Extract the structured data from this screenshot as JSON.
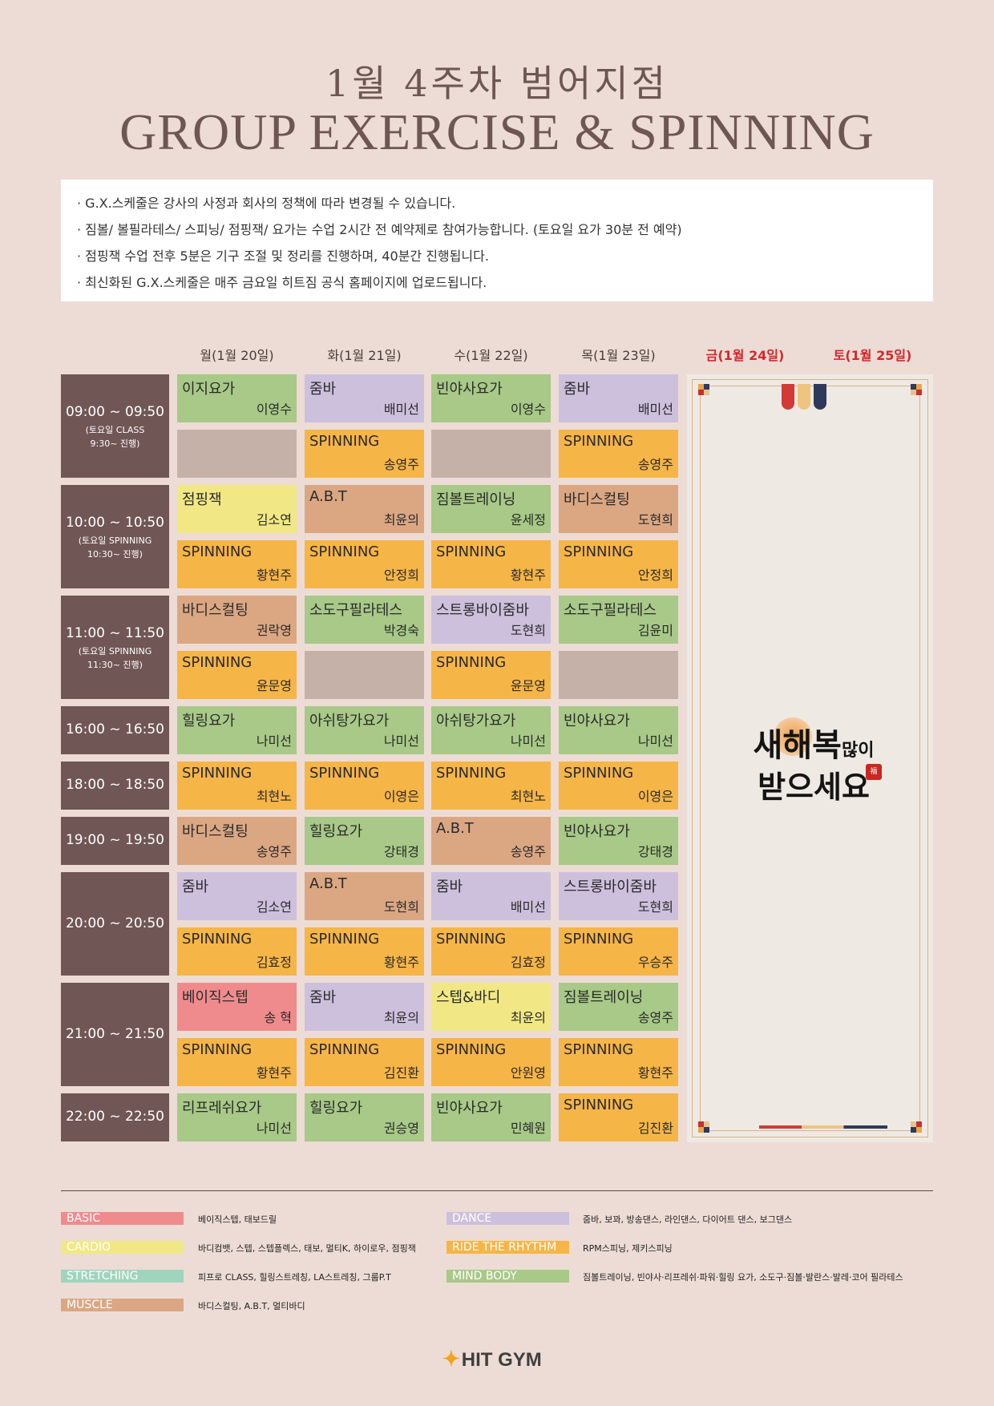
{
  "title_line1": "1월 4주차 범어지점",
  "title_line2": "GROUP EXERCISE & SPINNING",
  "notices": [
    "· G.X.스케줄은 강사의 사정과 회사의 정책에 따라 변경될 수 있습니다.",
    "· 짐볼/ 볼필라테스/ 스피닝/ 점핑잭/ 요가는 수업 2시간 전 예약제로 참여가능합니다. (토요일 요가 30분 전 예약)",
    "· 점핑잭 수업 전후 5분은 기구 조절 및 정리를 진행하며, 40분간 진행됩니다.",
    "· 최신화된 G.X.스케줄은 매주 금요일 히트짐 공식 홈페이지에 업로드됩니다."
  ],
  "days": [
    "월(1월 20일)",
    "화(1월 21일)",
    "수(1월 22일)",
    "목(1월 23일)",
    "금(1월 24일)",
    "토(1월 25일)"
  ],
  "slots": [
    {
      "time": "09:00 ~ 09:50",
      "note1": "(토요일 CLASS",
      "note2": "9:30~ 진행)",
      "rows": [
        [
          {
            "name": "이지요가",
            "inst": "이영수",
            "color": "green"
          },
          {
            "name": "줌바",
            "inst": "배미선",
            "color": "purple"
          },
          {
            "name": "빈야사요가",
            "inst": "이영수",
            "color": "green"
          },
          {
            "name": "줌바",
            "inst": "배미선",
            "color": "purple"
          }
        ],
        [
          {
            "name": "",
            "inst": "",
            "color": "empty"
          },
          {
            "name": "SPINNING",
            "inst": "송영주",
            "color": "orange"
          },
          {
            "name": "",
            "inst": "",
            "color": "empty"
          },
          {
            "name": "SPINNING",
            "inst": "송영주",
            "color": "orange"
          }
        ]
      ]
    },
    {
      "time": "10:00 ~ 10:50",
      "note1": "(토요일 SPINNING",
      "note2": "10:30~ 진행)",
      "rows": [
        [
          {
            "name": "점핑잭",
            "inst": "김소연",
            "color": "yellow"
          },
          {
            "name": "A.B.T",
            "inst": "최윤의",
            "color": "tan"
          },
          {
            "name": "짐볼트레이닝",
            "inst": "윤세정",
            "color": "green"
          },
          {
            "name": "바디스컬팅",
            "inst": "도현희",
            "color": "tan"
          }
        ],
        [
          {
            "name": "SPINNING",
            "inst": "황현주",
            "color": "orange"
          },
          {
            "name": "SPINNING",
            "inst": "안정희",
            "color": "orange"
          },
          {
            "name": "SPINNING",
            "inst": "황현주",
            "color": "orange"
          },
          {
            "name": "SPINNING",
            "inst": "안정희",
            "color": "orange"
          }
        ]
      ]
    },
    {
      "time": "11:00 ~ 11:50",
      "note1": "(토요일 SPINNING",
      "note2": "11:30~ 진행)",
      "rows": [
        [
          {
            "name": "바디스컬팅",
            "inst": "권락영",
            "color": "tan"
          },
          {
            "name": "소도구필라테스",
            "inst": "박경숙",
            "color": "green"
          },
          {
            "name": "스트롱바이줌바",
            "inst": "도현희",
            "color": "purple"
          },
          {
            "name": "소도구필라테스",
            "inst": "김윤미",
            "color": "green"
          }
        ],
        [
          {
            "name": "SPINNING",
            "inst": "윤문영",
            "color": "orange"
          },
          {
            "name": "",
            "inst": "",
            "color": "empty"
          },
          {
            "name": "SPINNING",
            "inst": "윤문영",
            "color": "orange"
          },
          {
            "name": "",
            "inst": "",
            "color": "empty"
          }
        ]
      ]
    },
    {
      "time": "16:00 ~ 16:50",
      "note1": "",
      "note2": "",
      "rows": [
        [
          {
            "name": "힐링요가",
            "inst": "나미선",
            "color": "green"
          },
          {
            "name": "아쉬탕가요가",
            "inst": "나미선",
            "color": "green"
          },
          {
            "name": "아쉬탕가요가",
            "inst": "나미선",
            "color": "green"
          },
          {
            "name": "빈야사요가",
            "inst": "나미선",
            "color": "green"
          }
        ]
      ]
    },
    {
      "time": "18:00 ~ 18:50",
      "note1": "",
      "note2": "",
      "rows": [
        [
          {
            "name": "SPINNING",
            "inst": "최현노",
            "color": "orange"
          },
          {
            "name": "SPINNING",
            "inst": "이영은",
            "color": "orange"
          },
          {
            "name": "SPINNING",
            "inst": "최현노",
            "color": "orange"
          },
          {
            "name": "SPINNING",
            "inst": "이영은",
            "color": "orange"
          }
        ]
      ]
    },
    {
      "time": "19:00 ~ 19:50",
      "note1": "",
      "note2": "",
      "rows": [
        [
          {
            "name": "바디스컬팅",
            "inst": "송영주",
            "color": "tan"
          },
          {
            "name": "힐링요가",
            "inst": "강태경",
            "color": "green"
          },
          {
            "name": "A.B.T",
            "inst": "송영주",
            "color": "tan"
          },
          {
            "name": "빈야사요가",
            "inst": "강태경",
            "color": "green"
          }
        ]
      ]
    },
    {
      "time": "20:00 ~ 20:50",
      "note1": "",
      "note2": "",
      "rows": [
        [
          {
            "name": "줌바",
            "inst": "김소연",
            "color": "purple"
          },
          {
            "name": "A.B.T",
            "inst": "도현희",
            "color": "tan"
          },
          {
            "name": "줌바",
            "inst": "배미선",
            "color": "purple"
          },
          {
            "name": "스트롱바이줌바",
            "inst": "도현희",
            "color": "purple"
          }
        ],
        [
          {
            "name": "SPINNING",
            "inst": "김효정",
            "color": "orange"
          },
          {
            "name": "SPINNING",
            "inst": "황현주",
            "color": "orange"
          },
          {
            "name": "SPINNING",
            "inst": "김효정",
            "color": "orange"
          },
          {
            "name": "SPINNING",
            "inst": "우승주",
            "color": "orange"
          }
        ]
      ]
    },
    {
      "time": "21:00 ~ 21:50",
      "note1": "",
      "note2": "",
      "rows": [
        [
          {
            "name": "베이직스텝",
            "inst": "송 혁",
            "color": "pink"
          },
          {
            "name": "줌바",
            "inst": "최윤의",
            "color": "purple"
          },
          {
            "name": "스텝&바디",
            "inst": "최윤의",
            "color": "yellow"
          },
          {
            "name": "짐볼트레이닝",
            "inst": "송영주",
            "color": "green"
          }
        ],
        [
          {
            "name": "SPINNING",
            "inst": "황현주",
            "color": "orange"
          },
          {
            "name": "SPINNING",
            "inst": "김진환",
            "color": "orange"
          },
          {
            "name": "SPINNING",
            "inst": "안원영",
            "color": "orange"
          },
          {
            "name": "SPINNING",
            "inst": "황현주",
            "color": "orange"
          }
        ]
      ]
    },
    {
      "time": "22:00 ~ 22:50",
      "note1": "",
      "note2": "",
      "rows": [
        [
          {
            "name": "리프레쉬요가",
            "inst": "나미선",
            "color": "green"
          },
          {
            "name": "힐링요가",
            "inst": "권승영",
            "color": "green"
          },
          {
            "name": "빈야사요가",
            "inst": "민혜원",
            "color": "green"
          },
          {
            "name": "SPINNING",
            "inst": "김진환",
            "color": "orange"
          }
        ]
      ]
    }
  ],
  "holiday": {
    "line1": "새해복",
    "line1b": "많이",
    "line2": "받으세요",
    "seal": "福"
  },
  "legend": [
    {
      "label": "BASIC",
      "color": "#ef8b8d",
      "desc": "베이직스텝, 태보드릴"
    },
    {
      "label": "CARDIO",
      "color": "#f1e885",
      "desc": "바디컴뱃, 스텝, 스텝플렉스, 태보, 멀티K, 하이로우, 점핑잭"
    },
    {
      "label": "STRETCHING",
      "color": "#9fd4bd",
      "desc": "피프로 CLASS, 힐링스트레칭, LA스트레칭, 그룹P.T"
    },
    {
      "label": "MUSCLE",
      "color": "#dba783",
      "desc": "바디스컬팅, A.B.T, 멀티바디"
    },
    {
      "label": "DANCE",
      "color": "#cdc0dd",
      "desc": "줌바, 보꽈, 방송댄스, 라인댄스, 다이어트 댄스, 보그댄스"
    },
    {
      "label": "RIDE THE RHYTHM",
      "color": "#f6b547",
      "desc": "RPM스피닝, 제키스피닝"
    },
    {
      "label": "MIND BODY",
      "color": "#a8c987",
      "desc": "짐볼트레이닝, 빈야사·리프레쉬·파워·힐링 요가, 소도구·짐볼·발란스·발레·코어 필라테스"
    }
  ],
  "logo": "HIT GYM",
  "colors": {
    "background": "#ecdcd5",
    "time_block": "#705654",
    "accent_red": "#d7262b"
  }
}
